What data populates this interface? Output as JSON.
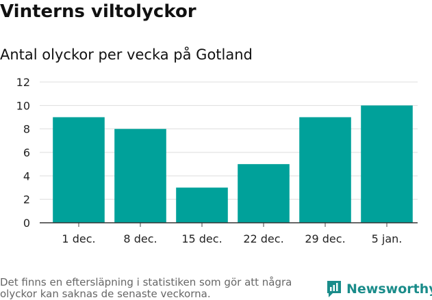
{
  "chart_data": {
    "type": "bar",
    "title": "Vinterns viltolyckor",
    "subtitle": "Antal olyckor per vecka på Gotland",
    "categories": [
      "1 dec.",
      "8 dec.",
      "15 dec.",
      "22 dec.",
      "29 dec.",
      "5 jan."
    ],
    "values": [
      9,
      8,
      3,
      5,
      9,
      10
    ],
    "yticks": [
      0,
      2,
      4,
      6,
      8,
      10,
      12
    ],
    "ylim": [
      0,
      12
    ],
    "grid": true,
    "bar_color": "#00a19a"
  },
  "footer": {
    "note": "Det finns en eftersläpning i statistiken som gör att några olyckor kan saknas de senaste veckorna.",
    "brand": "Newsworthy",
    "brand_color": "#1a8c8a",
    "logo_icon": "newsworthy-chart-icon"
  }
}
